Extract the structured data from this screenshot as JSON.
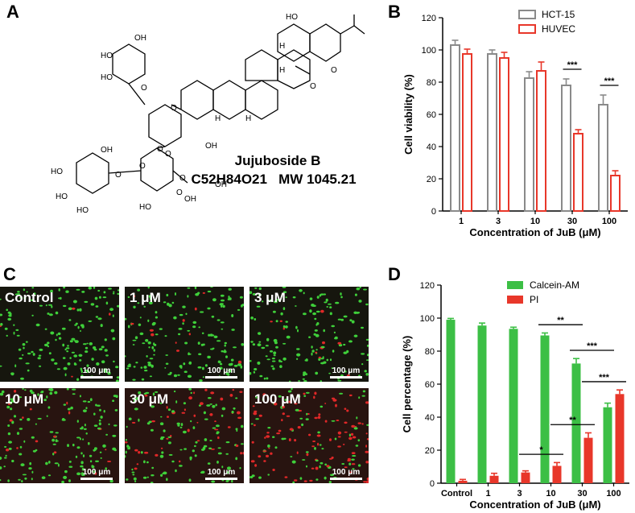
{
  "panels": {
    "a": "A",
    "b": "B",
    "c": "C",
    "d": "D"
  },
  "molecule": {
    "name": "Jujuboside B",
    "formula": "C52H84O21",
    "mw": "MW 1045.21",
    "atom_labels": [
      "HO",
      "H",
      "H",
      "H",
      "H",
      "O",
      "O",
      "OH",
      "HO",
      "HO",
      "O",
      "O",
      "O",
      "O",
      "OH",
      "O",
      "O",
      "HO",
      "HO",
      "HO",
      "OH",
      "O",
      "O",
      "OH",
      "HO",
      "OH"
    ]
  },
  "micrographs": [
    {
      "label": "Control",
      "scale": "100 μm",
      "red_fraction": 0.01
    },
    {
      "label": "1 μM",
      "scale": "100 μm",
      "red_fraction": 0.04
    },
    {
      "label": "3 μM",
      "scale": "100 μm",
      "red_fraction": 0.07
    },
    {
      "label": "10 μM",
      "scale": "100 μm",
      "red_fraction": 0.1
    },
    {
      "label": "30 μM",
      "scale": "100 μm",
      "red_fraction": 0.3
    },
    {
      "label": "100 μM",
      "scale": "100 μm",
      "red_fraction": 0.55
    }
  ],
  "chart_data": [
    {
      "type": "bar",
      "panel": "B",
      "categories": [
        "1",
        "3",
        "10",
        "30",
        "100"
      ],
      "xlabel": "Concentration of JuB (μM)",
      "ylabel": "Cell viability (%)",
      "ylim": [
        0,
        120
      ],
      "yticks": [
        0,
        20,
        40,
        60,
        80,
        100,
        120
      ],
      "legend_position": "top-right",
      "series": [
        {
          "name": "HCT-15",
          "color": "#8a8a8a",
          "fill": "none",
          "values": [
            103,
            97.5,
            82.5,
            78,
            66
          ],
          "errors": [
            3,
            2.5,
            4,
            4,
            6
          ]
        },
        {
          "name": "HUVEC",
          "color": "#e8372a",
          "fill": "none",
          "values": [
            97.5,
            95,
            87,
            48,
            22
          ],
          "errors": [
            3,
            3.5,
            5.5,
            2.5,
            3
          ]
        }
      ],
      "significance": [
        {
          "category": "30",
          "text": "***"
        },
        {
          "category": "100",
          "text": "***"
        }
      ]
    },
    {
      "type": "bar",
      "panel": "D",
      "categories": [
        "Control",
        "1",
        "3",
        "10",
        "30",
        "100"
      ],
      "xlabel": "Concentration of JuB (μM)",
      "ylabel": "Cell percentage (%)",
      "ylim": [
        0,
        120
      ],
      "yticks": [
        0,
        20,
        40,
        60,
        80,
        100,
        120
      ],
      "legend_position": "top-right",
      "series": [
        {
          "name": "Calcein-AM",
          "color": "#3cbf45",
          "fill": "solid",
          "values": [
            99,
            95.5,
            93.5,
            89.5,
            72.5,
            46
          ],
          "errors": [
            0.8,
            1.5,
            1,
            1.5,
            3,
            2.5
          ]
        },
        {
          "name": "PI",
          "color": "#e8372a",
          "fill": "solid",
          "values": [
            1.5,
            4.5,
            6.5,
            10.5,
            27.5,
            54
          ],
          "errors": [
            0.8,
            1.5,
            1,
            2,
            3,
            2.5
          ]
        }
      ],
      "significance": [
        {
          "series": "Calcein-AM",
          "from": "10",
          "to": "30",
          "text": "**"
        },
        {
          "series": "Calcein-AM",
          "from": "30",
          "to": "100",
          "text": "***"
        },
        {
          "series": "PI",
          "from": "3",
          "to": "10",
          "text": "*"
        },
        {
          "series": "PI",
          "from": "10",
          "to": "30",
          "text": "**"
        },
        {
          "series": "PI",
          "from": "30",
          "to": "100",
          "text": "***"
        }
      ]
    }
  ]
}
